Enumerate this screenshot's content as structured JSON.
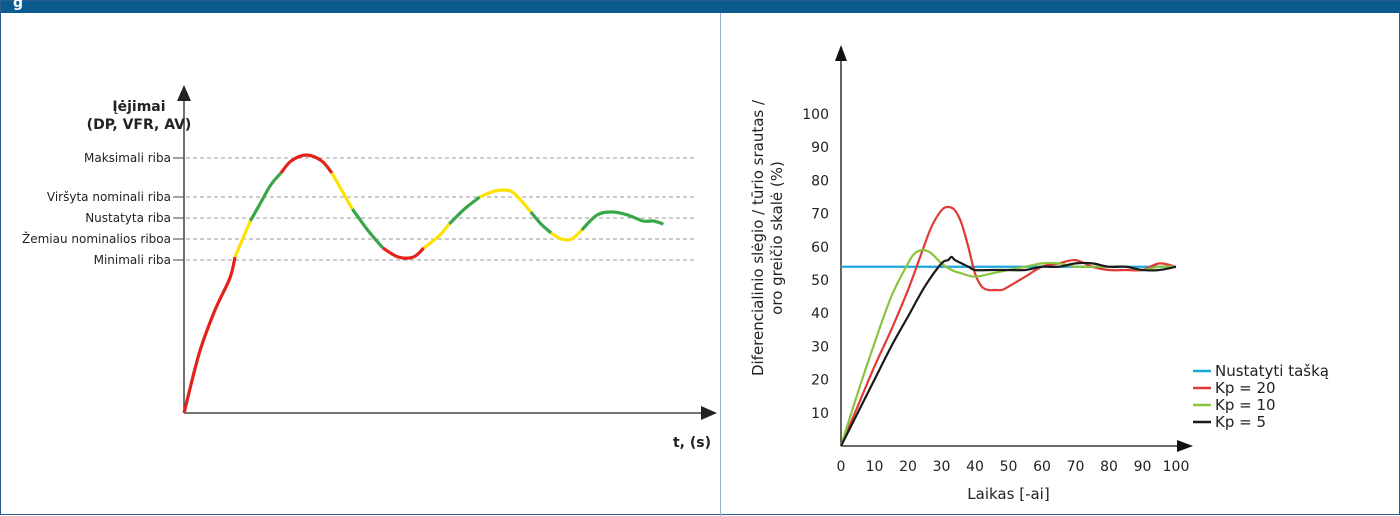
{
  "header": {
    "title": "g"
  },
  "colors": {
    "header": "#0b5b8f",
    "red": "#e32219",
    "yellow": "#ffe100",
    "green": "#3aa64a",
    "dashed": "#999999"
  },
  "chart_data": [
    {
      "type": "line",
      "title": "",
      "ylabel_line1": "Įėjimai",
      "ylabel_line2": "(DP, VFR, AV)",
      "xlabel": "t, (s)",
      "thresholds": [
        {
          "label": "Maksimali riba",
          "value": 85
        },
        {
          "label": "Viršyta nominali riba",
          "value": 72
        },
        {
          "label": "Nustatyta riba",
          "value": 65
        },
        {
          "label": "Žemiau nominalios riboa",
          "value": 58
        },
        {
          "label": "Minimali riba",
          "value": 51
        }
      ],
      "ylim": [
        0,
        100
      ],
      "xlim": [
        0,
        100
      ],
      "segments": [
        {
          "color": "red",
          "points": [
            [
              0,
              0
            ],
            [
              3,
              20
            ],
            [
              6,
              34
            ],
            [
              9,
              45
            ],
            [
              10,
              52
            ]
          ]
        },
        {
          "color": "yellow",
          "points": [
            [
              10,
              52
            ],
            [
              11,
              56
            ],
            [
              12,
              60
            ],
            [
              13,
              64
            ]
          ]
        },
        {
          "color": "green",
          "points": [
            [
              13,
              64
            ],
            [
              15,
              70
            ],
            [
              17,
              76
            ],
            [
              19,
              80
            ]
          ]
        },
        {
          "color": "red",
          "points": [
            [
              19,
              80
            ],
            [
              21,
              84
            ],
            [
              24,
              86
            ],
            [
              27,
              84
            ],
            [
              29,
              80
            ]
          ]
        },
        {
          "color": "yellow",
          "points": [
            [
              29,
              80
            ],
            [
              31,
              74
            ],
            [
              33,
              68
            ]
          ]
        },
        {
          "color": "green",
          "points": [
            [
              33,
              68
            ],
            [
              36,
              61
            ],
            [
              39,
              55
            ]
          ]
        },
        {
          "color": "red",
          "points": [
            [
              39,
              55
            ],
            [
              42,
              52
            ],
            [
              45,
              52
            ],
            [
              47,
              55
            ]
          ]
        },
        {
          "color": "yellow",
          "points": [
            [
              47,
              55
            ],
            [
              50,
              59
            ],
            [
              52,
              63
            ]
          ]
        },
        {
          "color": "green",
          "points": [
            [
              52,
              63
            ],
            [
              55,
              68
            ],
            [
              58,
              72
            ]
          ]
        },
        {
          "color": "yellow",
          "points": [
            [
              58,
              72
            ],
            [
              61,
              74
            ],
            [
              64,
              74
            ],
            [
              66,
              71
            ],
            [
              68,
              67
            ]
          ]
        },
        {
          "color": "green",
          "points": [
            [
              68,
              67
            ],
            [
              70,
              63
            ],
            [
              72,
              60
            ]
          ]
        },
        {
          "color": "yellow",
          "points": [
            [
              72,
              60
            ],
            [
              74,
              58
            ],
            [
              76,
              58
            ],
            [
              78,
              61
            ]
          ]
        },
        {
          "color": "green",
          "points": [
            [
              78,
              61
            ],
            [
              81,
              66
            ],
            [
              84,
              67
            ],
            [
              87,
              66
            ],
            [
              90,
              64
            ],
            [
              92,
              64
            ],
            [
              94,
              63
            ]
          ]
        }
      ]
    },
    {
      "type": "line",
      "title": "",
      "ylabel": "Diferencialinio slėgio / tūrio srautas / oro greičio skalė (%)",
      "xlabel": "Laikas [-ai]",
      "xlim": [
        0,
        100
      ],
      "ylim": [
        0,
        100
      ],
      "xticks": [
        0,
        10,
        20,
        30,
        40,
        50,
        60,
        70,
        80,
        90,
        100
      ],
      "yticks": [
        10,
        20,
        30,
        40,
        50,
        60,
        70,
        80,
        90,
        100
      ],
      "series": [
        {
          "name": "Nustatyti tašką",
          "color": "#1ba8dd",
          "x": [
            0,
            100
          ],
          "y": [
            54,
            54
          ]
        },
        {
          "name": "Kp = 20",
          "color": "#e03a35",
          "x": [
            0,
            5,
            10,
            15,
            20,
            24,
            27,
            30,
            32,
            34,
            36,
            38,
            40,
            42,
            44,
            46,
            48,
            50,
            55,
            60,
            65,
            70,
            75,
            80,
            85,
            90,
            95,
            100
          ],
          "y": [
            0,
            12,
            24,
            35,
            47,
            58,
            66,
            71,
            72,
            71,
            67,
            60,
            52,
            48,
            47,
            47,
            47,
            48,
            51,
            54,
            55,
            56,
            54,
            53,
            53,
            53,
            55,
            54
          ]
        },
        {
          "name": "Kp = 10",
          "color": "#8ac43f",
          "x": [
            0,
            5,
            10,
            15,
            20,
            22,
            24,
            25,
            27,
            30,
            33,
            36,
            40,
            45,
            50,
            55,
            60,
            65,
            70,
            75,
            80,
            85,
            90,
            95,
            100
          ],
          "y": [
            0,
            16,
            31,
            45,
            55,
            58,
            59,
            59,
            58,
            55,
            53,
            52,
            51,
            52,
            53,
            54,
            55,
            55,
            54,
            54,
            54,
            54,
            53,
            54,
            54
          ]
        },
        {
          "name": "Kp = 5",
          "color": "#1a1a1a",
          "x": [
            0,
            5,
            10,
            15,
            20,
            25,
            30,
            32,
            33,
            34,
            36,
            38,
            40,
            45,
            50,
            55,
            60,
            65,
            70,
            75,
            80,
            85,
            90,
            95,
            100
          ],
          "y": [
            0,
            10,
            20,
            30,
            39,
            48,
            55,
            56,
            57,
            56,
            55,
            54,
            53,
            53,
            53,
            53,
            54,
            54,
            55,
            55,
            54,
            54,
            53,
            53,
            54
          ]
        }
      ]
    }
  ]
}
